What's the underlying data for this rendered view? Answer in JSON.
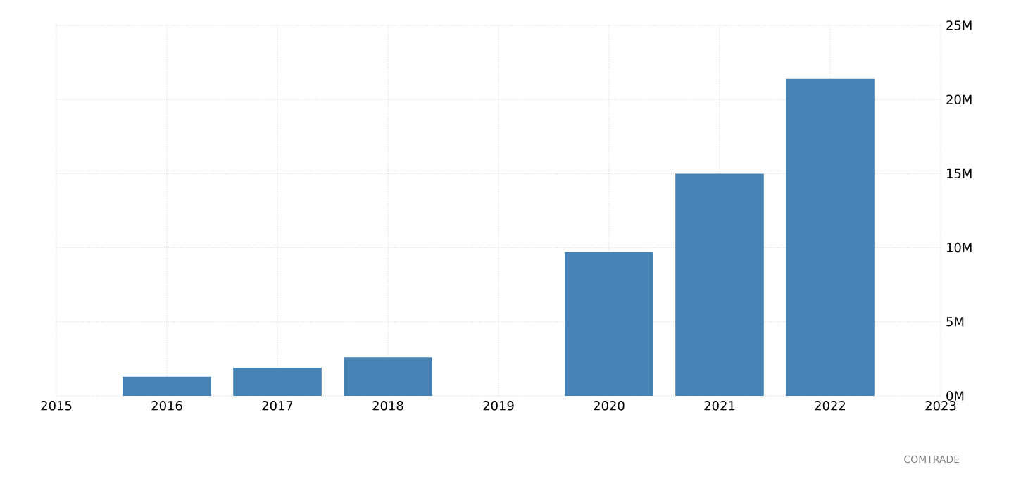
{
  "chart_data": {
    "type": "bar",
    "x": [
      2016,
      2017,
      2018,
      2020,
      2021,
      2022
    ],
    "values": [
      1300000.0,
      1900000.0,
      2600000.0,
      9700000.0,
      15000000.0,
      21400000.0
    ],
    "color": "#4682b4",
    "xlim": [
      2015,
      2023
    ],
    "xticks": [
      2015,
      2016,
      2017,
      2018,
      2019,
      2020,
      2021,
      2022,
      2023
    ],
    "ylim": [
      0,
      25000000
    ],
    "yticks": [
      {
        "value": 0,
        "label": "0M"
      },
      {
        "value": 5000000,
        "label": "5M"
      },
      {
        "value": 10000000,
        "label": "10M"
      },
      {
        "value": 15000000,
        "label": "15M"
      },
      {
        "value": 20000000,
        "label": "20M"
      },
      {
        "value": 25000000,
        "label": "25M"
      }
    ],
    "grid": true,
    "annotations": [
      "COMTRADE"
    ]
  }
}
